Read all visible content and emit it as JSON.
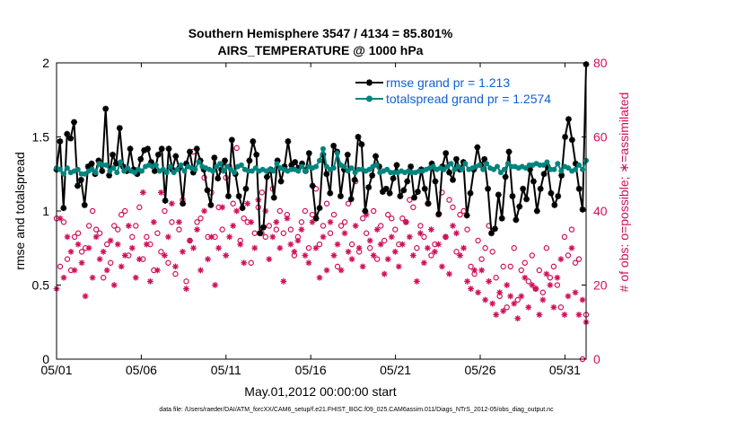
{
  "chart_data": {
    "type": "line",
    "title_line1": "Southern Hemisphere 3547 / 4134 = 85.801%",
    "title_line2": "AIRS_TEMPERATURE @ 1000 hPa",
    "xlabel": "May.01,2012 00:00:00 start",
    "ylabel_left": "rmse and totalspread",
    "ylabel_right": "# of obs: o=possible; ∗=assimilated",
    "footnote": "data file: /Users/raeder/DAI/ATM_forcXX/CAM6_setup/f.e21.FHIST_BGC.f09_025.CAM6assim.011/Diags_NTrS_2012-05/obs_diag_output.nc",
    "x_tick_labels": [
      "05/01",
      "05/06",
      "05/11",
      "05/16",
      "05/21",
      "05/26",
      "05/31"
    ],
    "x_tick_values": [
      1,
      6,
      11,
      16,
      21,
      26,
      31
    ],
    "xlim": [
      1,
      32.25
    ],
    "y_left_ticks": [
      "0",
      "0.5",
      "1",
      "1.5",
      "2"
    ],
    "ylim_left": [
      0,
      2
    ],
    "y_right_ticks": [
      "0",
      "20",
      "40",
      "60",
      "80"
    ],
    "ylim_right": [
      0,
      80
    ],
    "colors": {
      "rmse": "#000000",
      "spread": "#00847e",
      "obs": "#d0105a",
      "legend_text": "#1060d0"
    },
    "series": [
      {
        "name": "rmse grand pr = 1.213",
        "axis": "left",
        "marker": "star",
        "values": [
          1.28,
          1.47,
          1.02,
          1.52,
          1.49,
          1.6,
          1.17,
          1.21,
          1.04,
          1.3,
          1.32,
          1.25,
          1.34,
          1.27,
          1.69,
          1.24,
          1.38,
          1.32,
          1.56,
          1.3,
          1.27,
          1.42,
          1.28,
          1.25,
          1.35,
          1.41,
          1.42,
          1.33,
          1.27,
          1.38,
          1.42,
          1.07,
          1.42,
          1.28,
          1.37,
          1.29,
          1.05,
          1.32,
          1.4,
          1.26,
          1.42,
          1.34,
          1.28,
          1.14,
          1.04,
          1.36,
          1.22,
          1.28,
          1.34,
          1.1,
          1.48,
          1.25,
          1.1,
          1.02,
          1.15,
          1.34,
          1.47,
          1.38,
          0.85,
          0.89,
          1.23,
          1.28,
          1.09,
          1.34,
          1.2,
          1.3,
          1.47,
          1.31,
          1.33,
          1.29,
          1.32,
          1.27,
          1.39,
          1.17,
          0.95,
          1.02,
          1.38,
          1.25,
          1.12,
          1.44,
          1.4,
          1.1,
          1.28,
          1.38,
          1.08,
          1.21,
          1.5,
          1.45,
          1.0,
          1.16,
          1.24,
          1.37,
          1.3,
          1.13,
          1.15,
          1.12,
          1.22,
          1.31,
          1.1,
          1.14,
          1.2,
          1.3,
          1.09,
          1.13,
          1.28,
          1.15,
          1.05,
          1.32,
          1.2,
          0.98,
          1.3,
          1.39,
          1.26,
          1.21,
          1.35,
          1.28,
          1.33,
          0.97,
          1.12,
          1.28,
          1.43,
          1.31,
          1.35,
          1.15,
          0.85,
          0.88,
          1.11,
          0.95,
          1.23,
          1.4,
          1.1,
          0.94,
          1.03,
          1.15,
          1.08,
          1.28,
          1.2,
          1.0,
          1.15,
          1.25,
          1.3,
          1.12,
          1.04,
          1.1,
          1.24,
          1.5,
          1.62,
          1.48,
          1.32,
          1.15,
          1.01,
          1.99
        ]
      },
      {
        "name": "totalspread grand pr = 1.2574",
        "axis": "left",
        "marker": "dot",
        "values": [
          1.29,
          1.28,
          1.25,
          1.29,
          1.26,
          1.27,
          1.28,
          1.25,
          1.25,
          1.27,
          1.28,
          1.26,
          1.32,
          1.31,
          1.31,
          1.27,
          1.29,
          1.26,
          1.33,
          1.27,
          1.29,
          1.27,
          1.26,
          1.28,
          1.27,
          1.3,
          1.31,
          1.3,
          1.31,
          1.27,
          1.28,
          1.26,
          1.3,
          1.26,
          1.28,
          1.31,
          1.27,
          1.3,
          1.29,
          1.28,
          1.33,
          1.3,
          1.29,
          1.28,
          1.27,
          1.3,
          1.32,
          1.27,
          1.3,
          1.28,
          1.26,
          1.3,
          1.31,
          1.28,
          1.27,
          1.27,
          1.29,
          1.27,
          1.28,
          1.27,
          1.28,
          1.27,
          1.32,
          1.29,
          1.28,
          1.27,
          1.28,
          1.28,
          1.27,
          1.3,
          1.27,
          1.3,
          1.29,
          1.3,
          1.34,
          1.42,
          1.3,
          1.28,
          1.29,
          1.39,
          1.31,
          1.3,
          1.27,
          1.29,
          1.26,
          1.28,
          1.28,
          1.27,
          1.28,
          1.3,
          1.31,
          1.26,
          1.27,
          1.28,
          1.26,
          1.26,
          1.26,
          1.27,
          1.26,
          1.27,
          1.26,
          1.26,
          1.27,
          1.27,
          1.28,
          1.29,
          1.3,
          1.28,
          1.29,
          1.28,
          1.3,
          1.32,
          1.28,
          1.3,
          1.28,
          1.32,
          1.28,
          1.29,
          1.3,
          1.31,
          1.28,
          1.32,
          1.29,
          1.28,
          1.3,
          1.26,
          1.28,
          1.32,
          1.3,
          1.3,
          1.29,
          1.3,
          1.29,
          1.31,
          1.31,
          1.32,
          1.31,
          1.31,
          1.33,
          1.28,
          1.28,
          1.32,
          1.27,
          1.3,
          1.29,
          1.27,
          1.28,
          1.31,
          1.28,
          1.34
        ]
      },
      {
        "name": "possible",
        "axis": "right",
        "marker": "circle",
        "values": [
          38,
          25,
          37,
          27,
          24,
          33,
          34,
          29,
          30,
          36,
          40,
          35,
          34,
          22,
          31,
          26,
          36,
          35,
          39,
          40,
          28,
          33,
          36,
          41,
          27,
          33,
          31,
          24,
          34,
          29,
          40,
          26,
          37,
          23,
          35,
          43,
          21,
          32,
          56,
          37,
          38,
          49,
          33,
          45,
          33,
          41,
          35,
          49,
          52,
          42,
          57,
          32,
          38,
          37,
          26,
          34,
          41,
          45,
          33,
          36,
          46,
          35,
          40,
          34,
          39,
          35,
          28,
          33,
          37,
          40,
          30,
          39,
          46,
          31,
          36,
          42,
          34,
          39,
          25,
          36,
          37,
          42,
          31,
          48,
          29,
          38,
          34,
          30,
          40,
          27,
          36,
          32,
          39,
          38,
          35,
          31,
          38,
          37,
          43,
          41,
          30,
          36,
          33,
          42,
          28,
          31,
          39,
          45,
          33,
          43,
          41,
          29,
          39,
          40,
          35,
          25,
          23,
          32,
          27,
          30,
          36,
          29,
          22,
          17,
          25,
          14,
          25,
          30,
          16,
          24,
          26,
          21,
          28,
          19,
          24,
          18,
          30,
          22,
          25,
          20,
          14,
          33,
          28,
          35,
          26,
          27,
          0,
          12
        ]
      },
      {
        "name": "assimilated",
        "axis": "right",
        "marker": "star",
        "values": [
          19,
          38,
          22,
          33,
          29,
          24,
          31,
          26,
          17,
          30,
          22,
          33,
          27,
          29,
          24,
          32,
          20,
          31,
          25,
          28,
          36,
          30,
          22,
          27,
          45,
          31,
          21,
          37,
          24,
          45,
          28,
          33,
          42,
          25,
          37,
          29,
          19,
          32,
          30,
          35,
          24,
          40,
          27,
          33,
          20,
          30,
          41,
          28,
          33,
          36,
          40,
          31,
          26,
          42,
          37,
          30,
          43,
          34,
          40,
          27,
          33,
          37,
          30,
          21,
          38,
          31,
          29,
          32,
          35,
          28,
          26,
          37,
          30,
          22,
          33,
          24,
          37,
          28,
          31,
          24,
          34,
          29,
          27,
          36,
          30,
          25,
          39,
          32,
          28,
          35,
          31,
          23,
          27,
          33,
          29,
          25,
          31,
          37,
          33,
          28,
          21,
          34,
          26,
          30,
          35,
          29,
          31,
          25,
          33,
          23,
          36,
          34,
          28,
          30,
          21,
          19,
          24,
          18,
          24,
          16,
          21,
          15,
          12,
          18,
          13,
          20,
          17,
          15,
          11,
          17,
          22,
          14,
          20,
          19,
          12,
          16,
          23,
          20,
          14,
          22,
          27,
          12,
          17,
          30,
          18,
          12,
          16,
          10
        ]
      }
    ]
  }
}
